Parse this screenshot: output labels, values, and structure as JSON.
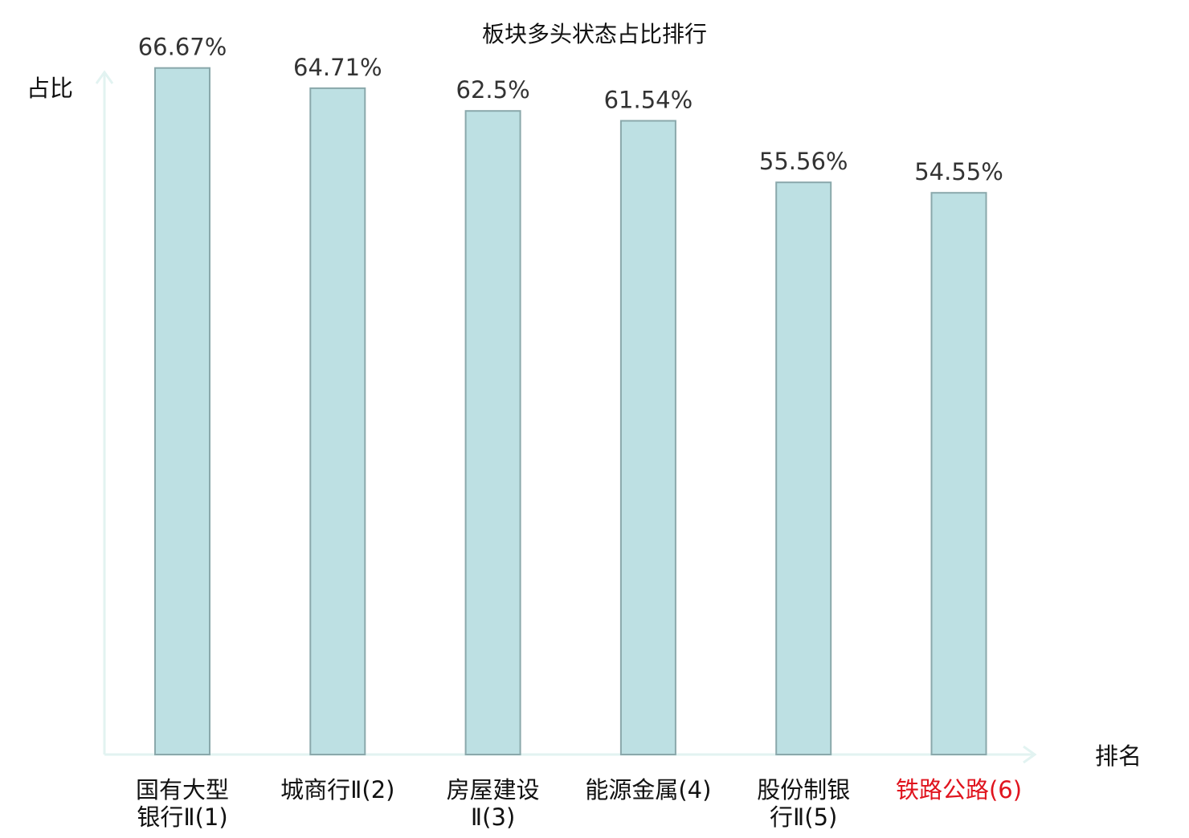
{
  "chart_data": {
    "type": "bar",
    "title": "板块多头状态占比排行",
    "ylabel": "占比",
    "xlabel": "排名",
    "ylim": [
      0,
      70
    ],
    "grid": false,
    "categories": [
      {
        "lines": [
          "国有大型",
          "银行Ⅱ(1)"
        ],
        "highlight": false
      },
      {
        "lines": [
          "城商行Ⅱ(2)"
        ],
        "highlight": false
      },
      {
        "lines": [
          "房屋建设",
          "Ⅱ(3)"
        ],
        "highlight": false
      },
      {
        "lines": [
          "能源金属(4)"
        ],
        "highlight": false
      },
      {
        "lines": [
          "股份制银",
          "行Ⅱ(5)"
        ],
        "highlight": false
      },
      {
        "lines": [
          "铁路公路(6)"
        ],
        "highlight": true
      }
    ],
    "values": [
      66.67,
      64.71,
      62.5,
      61.54,
      55.56,
      54.55
    ],
    "data_labels": [
      "66.67%",
      "64.71%",
      "62.5%",
      "61.54%",
      "55.56%",
      "54.55%"
    ]
  },
  "colors": {
    "bar_fill": "#bde0e3",
    "bar_stroke": "#8aa8ab",
    "axis": "#e2f3f1",
    "text": "#111111",
    "data_label": "#333333",
    "highlight": "#e0141e"
  }
}
